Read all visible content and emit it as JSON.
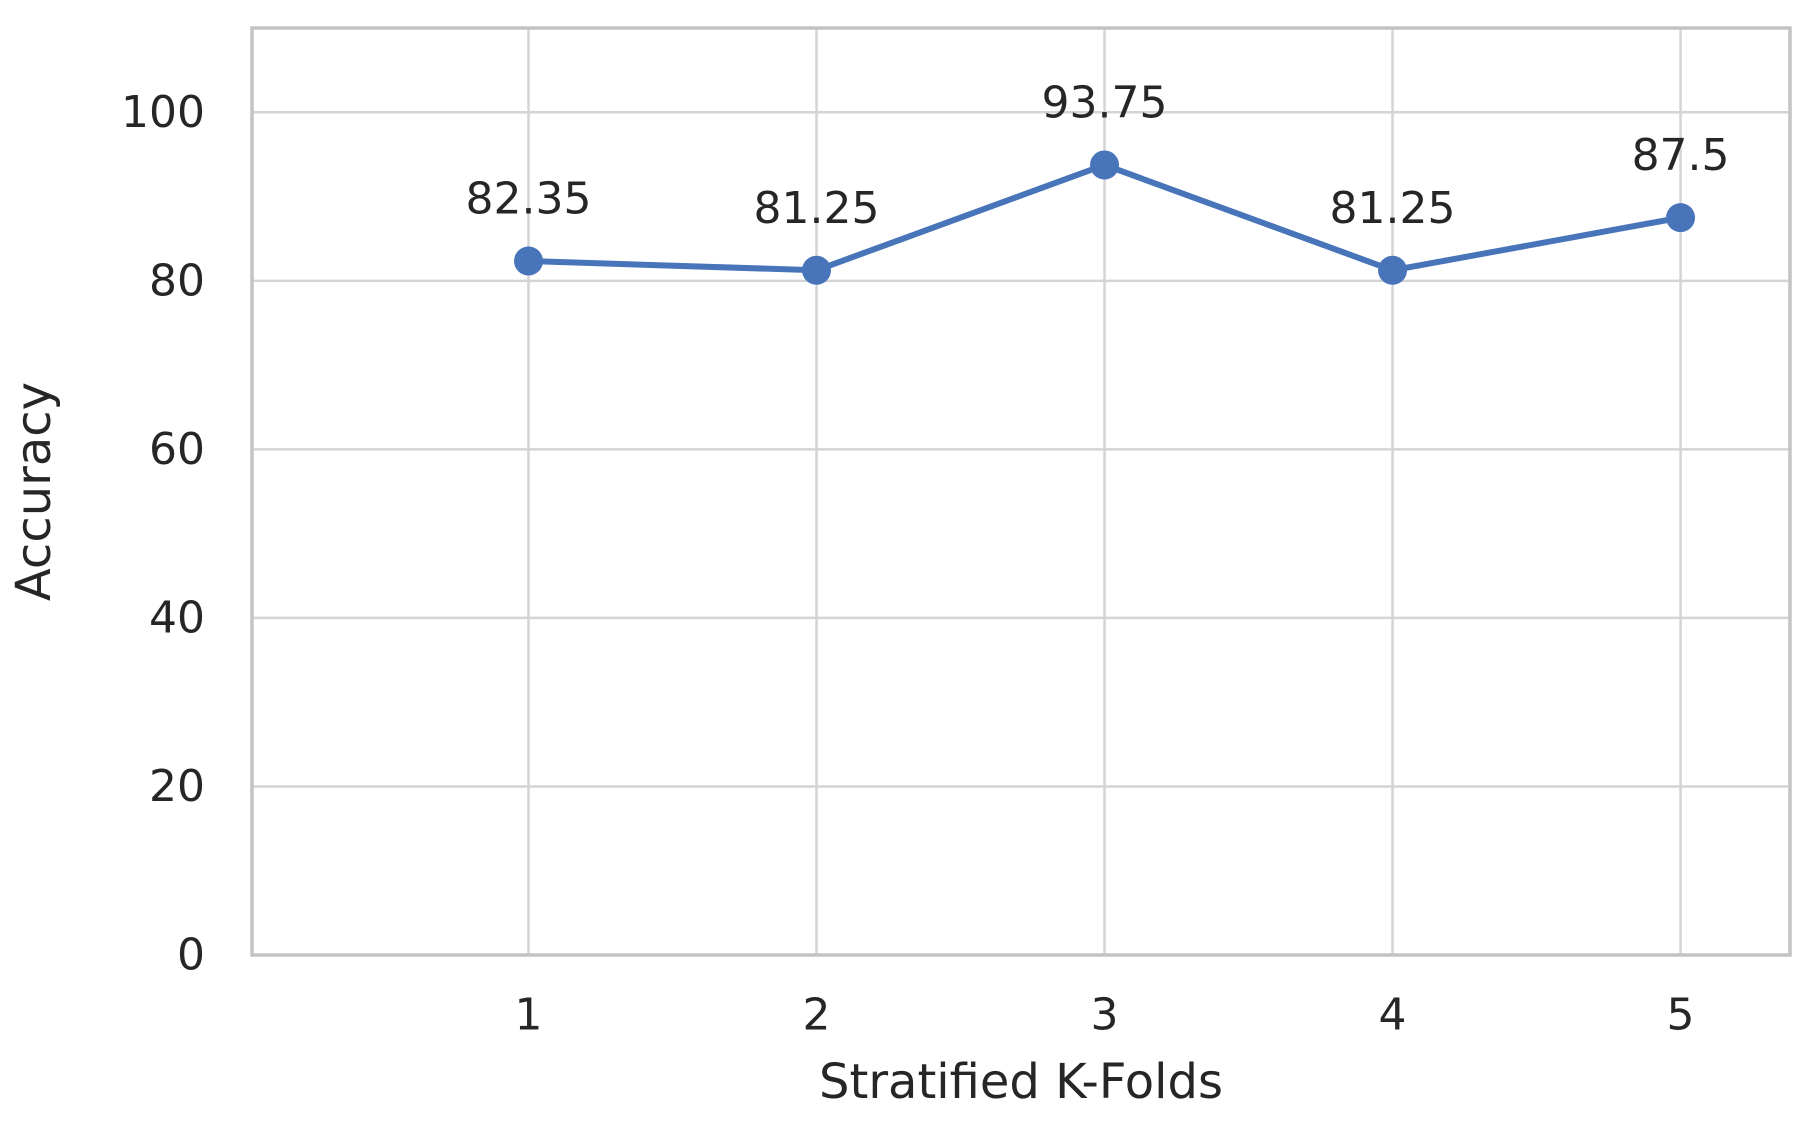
{
  "chart_data": {
    "type": "line",
    "title": "",
    "xlabel": "Stratified K-Folds",
    "ylabel": "Accuracy",
    "x": [
      1,
      2,
      3,
      4,
      5
    ],
    "xtick_labels": [
      "1",
      "2",
      "3",
      "4",
      "5"
    ],
    "series": [
      {
        "name": "Accuracy",
        "values": [
          82.35,
          81.25,
          93.75,
          81.25,
          87.5
        ]
      }
    ],
    "point_labels": [
      "82.35",
      "81.25",
      "93.75",
      "81.25",
      "87.5"
    ],
    "yticks": [
      0,
      20,
      40,
      60,
      80,
      100
    ],
    "ytick_labels": [
      "0",
      "20",
      "40",
      "60",
      "80",
      "100"
    ],
    "ylim": [
      0,
      110
    ],
    "xlim": [
      0.04,
      5.38
    ],
    "grid": true,
    "legend_position": "none",
    "colors": {
      "line": "#4874ba",
      "marker": "#4874ba",
      "grid": "#d4d4d4",
      "spine": "#c3c3c3",
      "text": "#262626",
      "background": "#ffffff"
    }
  }
}
